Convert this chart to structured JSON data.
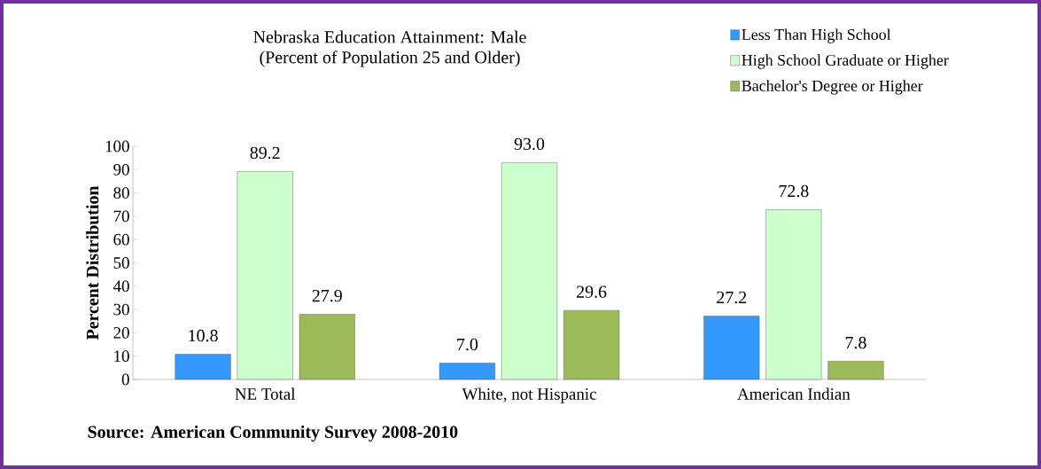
{
  "chart_data": {
    "type": "bar",
    "title": "Nebraska Education Attainment: Male",
    "subtitle": "(Percent of Population 25 and Older)",
    "ylabel": "Percent Distribution",
    "categories": [
      "NE Total",
      "White, not Hispanic",
      "American Indian"
    ],
    "series": [
      {
        "name": "Less Than High School",
        "color": "#3399ff",
        "values": [
          10.8,
          7.0,
          27.2
        ],
        "value_labels": [
          "10.8",
          "7.0",
          "27.2"
        ]
      },
      {
        "name": "High School Graduate or Higher",
        "color": "#ccffcc",
        "values": [
          89.2,
          93.0,
          72.8
        ],
        "value_labels": [
          "89.2",
          "93.0",
          "72.8"
        ]
      },
      {
        "name": "Bachelor's Degree or Higher",
        "color": "#9bbb59",
        "values": [
          27.9,
          29.6,
          7.8
        ],
        "value_labels": [
          "27.9",
          "29.6",
          "7.8"
        ]
      }
    ],
    "ylim": [
      0,
      100
    ],
    "yticks": [
      0,
      10,
      20,
      30,
      40,
      50,
      60,
      70,
      80,
      90,
      100
    ],
    "legend": "top right",
    "grid": false,
    "annotations": [
      "Source: American Community Survey 2008-2010"
    ]
  }
}
